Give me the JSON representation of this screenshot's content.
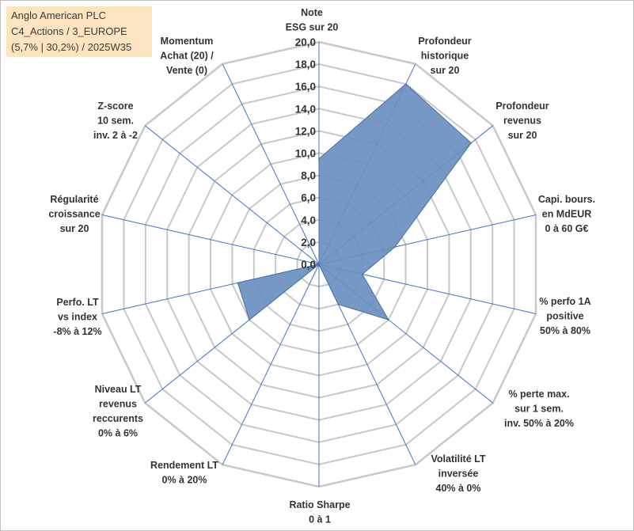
{
  "title_box": {
    "line1": "Anglo American PLC",
    "line2": "C4_Actions / 3_EUROPE",
    "line3": "(5,7% | 30,2%) / 2025W35"
  },
  "chart_data": {
    "type": "radar",
    "rlim": [
      0,
      20
    ],
    "rticks": [
      "0,0",
      "2,0",
      "4,0",
      "6,0",
      "8,0",
      "10,0",
      "12,0",
      "14,0",
      "16,0",
      "18,0",
      "20,0"
    ],
    "axes": [
      [
        "Note",
        "ESG sur 20"
      ],
      [
        "Profondeur",
        "historique",
        "sur 20"
      ],
      [
        "Profondeur",
        "revenus",
        "sur 20"
      ],
      [
        "Capi. bours.",
        "en MdEUR",
        "0 à 60 G€"
      ],
      [
        "% perfo 1A",
        "positive",
        "50% à 80%"
      ],
      [
        "% perte max.",
        "sur 1 sem.",
        "inv. 50% à 20%"
      ],
      [
        "Volatilité LT",
        "inversée",
        "40% à 0%"
      ],
      [
        "Ratio Sharpe",
        "0 à 1"
      ],
      [
        "Rendement LT",
        "0% à 20%"
      ],
      [
        "Niveau LT",
        "revenus",
        "reccurents",
        "0% à 6%"
      ],
      [
        "Perfo. LT",
        "vs index",
        "-8% à 12%"
      ],
      [
        "Régularité",
        "croissance",
        "sur 20"
      ],
      [
        "Z-score",
        "10 sem.",
        "inv. 2 à -2"
      ],
      [
        "Momentum",
        "Achat (20) /",
        "Vente (0)"
      ]
    ],
    "values": [
      9.5,
      18.0,
      17.5,
      7.0,
      4.0,
      8.0,
      4.0,
      0.0,
      0.0,
      8.0,
      7.5,
      0.0,
      0.0,
      0.0
    ],
    "fill_color": "#6a8fbf",
    "stroke_color": "#4a6f9f",
    "grid_color": "#c8c8c8",
    "spoke_color": "#4472c4"
  }
}
